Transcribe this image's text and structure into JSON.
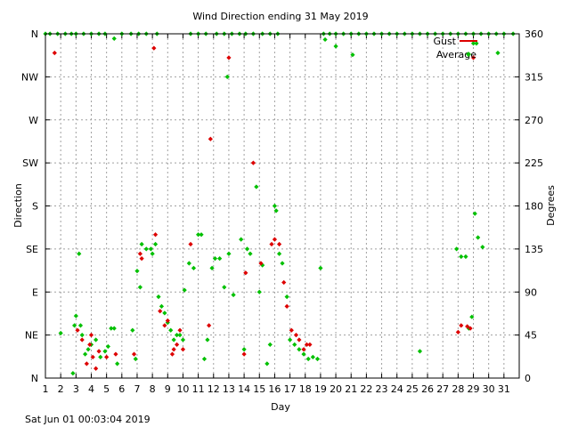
{
  "chart_data": {
    "type": "scatter",
    "title": "Wind Direction ending 31 May 2019",
    "xlabel": "Day",
    "ylabel_left": "Direction",
    "ylabel_right": "Degrees",
    "xlim": [
      1,
      32
    ],
    "ylim": [
      0,
      360
    ],
    "x_ticks": [
      "1",
      "2",
      "3",
      "4",
      "5",
      "6",
      "7",
      "8",
      "9",
      "10",
      "11",
      "12",
      "13",
      "14",
      "15",
      "16",
      "17",
      "18",
      "19",
      "20",
      "21",
      "22",
      "23",
      "24",
      "25",
      "26",
      "27",
      "28",
      "29",
      "30",
      "31"
    ],
    "y_ticks_left": [
      {
        "value": 0,
        "label": "N"
      },
      {
        "value": 45,
        "label": "NE"
      },
      {
        "value": 90,
        "label": "E"
      },
      {
        "value": 135,
        "label": "SE"
      },
      {
        "value": 180,
        "label": "S"
      },
      {
        "value": 225,
        "label": "SW"
      },
      {
        "value": 270,
        "label": "W"
      },
      {
        "value": 315,
        "label": "NW"
      },
      {
        "value": 360,
        "label": "N"
      }
    ],
    "y_ticks_right": [
      "0",
      "45",
      "90",
      "135",
      "180",
      "225",
      "270",
      "315",
      "360"
    ],
    "grid": true,
    "legend": {
      "placement": "top-right",
      "entries": [
        "Gust",
        "Average"
      ]
    },
    "footer": "Sat Jun 01 00:03:04 2019",
    "colors": {
      "gust": "#dd0000",
      "average": "#00c000",
      "grid": "#a0a0a0",
      "axis": "#000000"
    },
    "series": [
      {
        "name": "Gust",
        "color": "#dd0000",
        "points": [
          [
            1.6,
            340
          ],
          [
            3.1,
            50
          ],
          [
            3.4,
            40
          ],
          [
            3.7,
            15
          ],
          [
            3.9,
            35
          ],
          [
            4.0,
            45
          ],
          [
            4.1,
            22
          ],
          [
            4.3,
            10
          ],
          [
            4.5,
            28
          ],
          [
            5.0,
            22
          ],
          [
            5.6,
            25
          ],
          [
            6.8,
            25
          ],
          [
            7.2,
            130
          ],
          [
            7.3,
            125
          ],
          [
            8.1,
            345
          ],
          [
            8.2,
            150
          ],
          [
            8.5,
            70
          ],
          [
            8.8,
            55
          ],
          [
            9.0,
            60
          ],
          [
            9.3,
            25
          ],
          [
            9.4,
            30
          ],
          [
            9.6,
            35
          ],
          [
            9.8,
            50
          ],
          [
            10.0,
            30
          ],
          [
            10.5,
            140
          ],
          [
            11.7,
            55
          ],
          [
            11.8,
            250
          ],
          [
            13.0,
            335
          ],
          [
            14.0,
            25
          ],
          [
            14.1,
            110
          ],
          [
            14.6,
            225
          ],
          [
            15.1,
            120
          ],
          [
            15.8,
            140
          ],
          [
            16.0,
            145
          ],
          [
            16.3,
            140
          ],
          [
            16.6,
            100
          ],
          [
            16.8,
            75
          ],
          [
            17.1,
            50
          ],
          [
            17.4,
            45
          ],
          [
            17.6,
            40
          ],
          [
            17.9,
            30
          ],
          [
            18.1,
            35
          ],
          [
            18.3,
            35
          ],
          [
            28.0,
            48
          ],
          [
            28.2,
            55
          ],
          [
            28.6,
            54
          ],
          [
            28.8,
            52
          ],
          [
            29.0,
            335
          ]
        ]
      },
      {
        "name": "Average",
        "color": "#00c000",
        "points": [
          [
            1.3,
            360
          ],
          [
            1.8,
            360
          ],
          [
            2.3,
            360
          ],
          [
            2.7,
            360
          ],
          [
            3.0,
            360
          ],
          [
            3.5,
            360
          ],
          [
            4.0,
            360
          ],
          [
            4.5,
            360
          ],
          [
            4.9,
            360
          ],
          [
            5.5,
            355
          ],
          [
            6.0,
            360
          ],
          [
            6.6,
            360
          ],
          [
            7.1,
            360
          ],
          [
            7.6,
            360
          ],
          [
            8.3,
            360
          ],
          [
            10.5,
            360
          ],
          [
            11.0,
            360
          ],
          [
            11.5,
            360
          ],
          [
            12.2,
            360
          ],
          [
            12.7,
            360
          ],
          [
            13.2,
            360
          ],
          [
            13.7,
            360
          ],
          [
            14.1,
            360
          ],
          [
            14.6,
            360
          ],
          [
            15.2,
            360
          ],
          [
            15.7,
            360
          ],
          [
            16.2,
            360
          ],
          [
            19.2,
            360
          ],
          [
            19.6,
            360
          ],
          [
            20.0,
            360
          ],
          [
            20.5,
            360
          ],
          [
            21.0,
            360
          ],
          [
            21.5,
            360
          ],
          [
            22.0,
            360
          ],
          [
            22.5,
            360
          ],
          [
            23.0,
            360
          ],
          [
            23.5,
            360
          ],
          [
            24.0,
            360
          ],
          [
            24.5,
            360
          ],
          [
            25.0,
            360
          ],
          [
            25.5,
            360
          ],
          [
            26.0,
            360
          ],
          [
            26.5,
            360
          ],
          [
            27.0,
            360
          ],
          [
            27.5,
            360
          ],
          [
            28.0,
            360
          ],
          [
            28.5,
            360
          ],
          [
            29.0,
            360
          ],
          [
            29.5,
            360
          ],
          [
            30.0,
            360
          ],
          [
            30.5,
            360
          ],
          [
            31.0,
            360
          ],
          [
            31.6,
            360
          ],
          [
            1.0,
            360
          ],
          [
            19.3,
            354
          ],
          [
            20.0,
            347
          ],
          [
            21.1,
            338
          ],
          [
            29.0,
            350
          ],
          [
            29.2,
            350
          ],
          [
            30.6,
            340
          ],
          [
            12.9,
            315
          ],
          [
            2.0,
            47
          ],
          [
            2.8,
            5
          ],
          [
            2.9,
            55
          ],
          [
            3.0,
            65
          ],
          [
            3.2,
            130
          ],
          [
            3.3,
            55
          ],
          [
            3.4,
            45
          ],
          [
            3.6,
            25
          ],
          [
            3.8,
            30
          ],
          [
            4.0,
            35
          ],
          [
            4.3,
            40
          ],
          [
            4.6,
            22
          ],
          [
            4.9,
            28
          ],
          [
            5.1,
            33
          ],
          [
            5.3,
            52
          ],
          [
            5.5,
            52
          ],
          [
            5.7,
            15
          ],
          [
            6.7,
            50
          ],
          [
            6.9,
            20
          ],
          [
            7.0,
            112
          ],
          [
            7.2,
            95
          ],
          [
            7.3,
            140
          ],
          [
            7.6,
            135
          ],
          [
            7.9,
            135
          ],
          [
            8.0,
            130
          ],
          [
            8.2,
            140
          ],
          [
            8.4,
            85
          ],
          [
            8.6,
            75
          ],
          [
            8.8,
            68
          ],
          [
            9.0,
            58
          ],
          [
            9.2,
            50
          ],
          [
            9.4,
            40
          ],
          [
            9.6,
            45
          ],
          [
            9.8,
            45
          ],
          [
            10.0,
            40
          ],
          [
            10.1,
            92
          ],
          [
            10.4,
            120
          ],
          [
            10.7,
            115
          ],
          [
            11.0,
            150
          ],
          [
            11.2,
            150
          ],
          [
            11.4,
            20
          ],
          [
            11.6,
            40
          ],
          [
            11.9,
            115
          ],
          [
            12.1,
            125
          ],
          [
            12.4,
            125
          ],
          [
            12.7,
            95
          ],
          [
            13.0,
            130
          ],
          [
            13.3,
            87
          ],
          [
            13.8,
            145
          ],
          [
            14.0,
            30
          ],
          [
            14.2,
            135
          ],
          [
            14.4,
            130
          ],
          [
            14.8,
            200
          ],
          [
            15.0,
            90
          ],
          [
            15.2,
            118
          ],
          [
            15.5,
            15
          ],
          [
            15.7,
            35
          ],
          [
            16.0,
            180
          ],
          [
            16.1,
            175
          ],
          [
            16.3,
            130
          ],
          [
            16.5,
            120
          ],
          [
            16.8,
            85
          ],
          [
            17.0,
            40
          ],
          [
            17.3,
            35
          ],
          [
            17.6,
            30
          ],
          [
            17.9,
            25
          ],
          [
            18.2,
            20
          ],
          [
            18.5,
            22
          ],
          [
            18.8,
            20
          ],
          [
            19.0,
            115
          ],
          [
            25.5,
            28
          ],
          [
            27.9,
            135
          ],
          [
            28.2,
            127
          ],
          [
            28.5,
            127
          ],
          [
            28.7,
            52
          ],
          [
            28.9,
            64
          ],
          [
            29.1,
            172
          ],
          [
            29.3,
            147
          ],
          [
            29.6,
            137
          ]
        ]
      }
    ]
  }
}
